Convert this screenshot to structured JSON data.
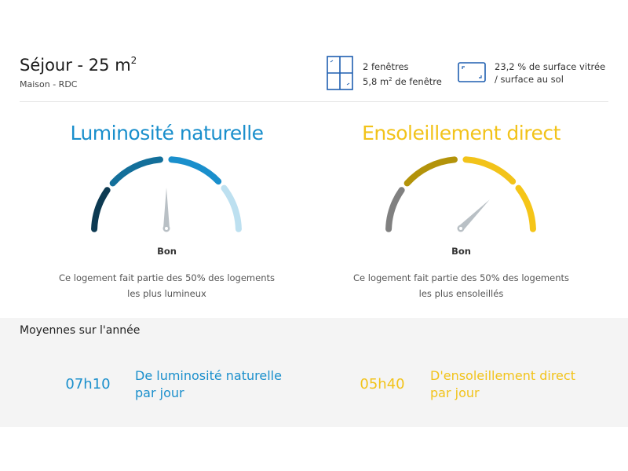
{
  "header": {
    "title": "Séjour - 25 m",
    "title_sup": "2",
    "subtitle": "Maison - RDC",
    "windows": {
      "icon": "window-icon",
      "line1": "2 fenêtres",
      "line2_pre": "5,8 m",
      "line2_sup": "2",
      "line2_post": " de fenêtre"
    },
    "glazing": {
      "icon": "glazed-surface-icon",
      "line1": "23,2 % de surface vitrée",
      "line2": "/ surface au sol"
    }
  },
  "gauges": [
    {
      "title": "Luminosité naturelle",
      "title_color": "#1a8fcc",
      "label": "Bon",
      "description": "Ce logement fait partie des 50% des logements les plus lumineux",
      "segment_colors": [
        "#0d3a52",
        "#136f9a",
        "#1a8fcc",
        "#bde0f0"
      ],
      "level": 0.5
    },
    {
      "title": "Ensoleillement direct",
      "title_color": "#f2c31a",
      "label": "Bon",
      "description": "Ce logement fait partie des 50% des logements les plus ensoleillés",
      "segment_colors": [
        "#808080",
        "#b3930a",
        "#f2c31a",
        "#f5c518"
      ],
      "level": 0.75
    }
  ],
  "averages": {
    "title": "Moyennes sur l'année",
    "items": [
      {
        "value": "07h10",
        "label_line1": "De luminosité naturelle",
        "label_line2": "par jour",
        "color": "#1a8fcc",
        "fraction": 0.55
      },
      {
        "value": "05h40",
        "label_line1": "D'ensoleillement direct",
        "label_line2": "par jour",
        "color": "#f2c31a",
        "fraction": 0.83
      }
    ]
  }
}
